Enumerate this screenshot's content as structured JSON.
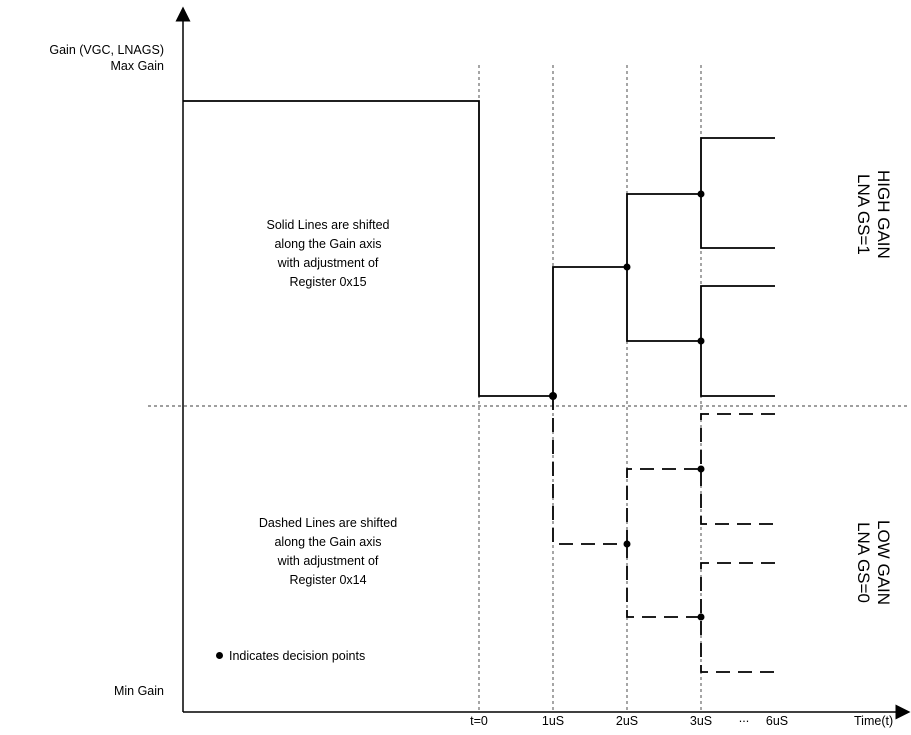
{
  "y_axis": {
    "title": "Gain (VGC, LNAGS)",
    "max_label": "Max Gain",
    "min_label": "Min Gain"
  },
  "x_axis": {
    "ticks": [
      "t=0",
      "1uS",
      "2uS",
      "3uS",
      "...",
      "6uS"
    ],
    "title": "Time(t)"
  },
  "notes": {
    "solid": [
      "Solid Lines are shifted",
      "along the Gain axis",
      "with adjustment of",
      "Register 0x15"
    ],
    "dashed": [
      "Dashed Lines are shifted",
      "along the Gain axis",
      "with adjustment of",
      "Register 0x14"
    ],
    "legend": "Indicates decision points"
  },
  "regions": {
    "high": [
      "HIGH GAIN",
      "LNA GS=1"
    ],
    "low": [
      "LOW GAIN",
      "LNA GS=0"
    ]
  }
}
